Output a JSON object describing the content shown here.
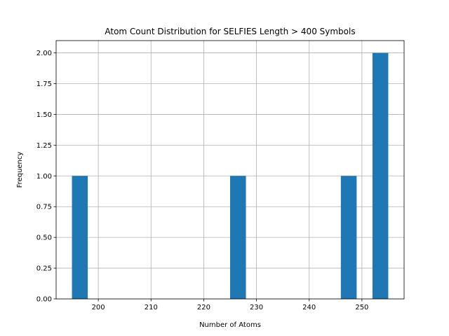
{
  "chart_data": {
    "type": "bar",
    "title": "Atom Count Distribution for SELFIES Length > 400 Symbols",
    "xlabel": "Number of Atoms",
    "ylabel": "Frequency",
    "xlim": [
      192.0,
      258.0
    ],
    "ylim": [
      0.0,
      2.1
    ],
    "grid": true,
    "bar_color": "#1f77b4",
    "bins": [
      {
        "start": 195.0,
        "end": 198.0,
        "count": 1
      },
      {
        "start": 225.0,
        "end": 228.0,
        "count": 1
      },
      {
        "start": 246.0,
        "end": 249.0,
        "count": 1
      },
      {
        "start": 252.0,
        "end": 255.0,
        "count": 2
      }
    ],
    "x_ticks": [
      {
        "value": 200,
        "label": "200"
      },
      {
        "value": 210,
        "label": "210"
      },
      {
        "value": 220,
        "label": "220"
      },
      {
        "value": 230,
        "label": "230"
      },
      {
        "value": 240,
        "label": "240"
      },
      {
        "value": 250,
        "label": "250"
      }
    ],
    "y_ticks": [
      {
        "value": 0.0,
        "label": "0.00"
      },
      {
        "value": 0.25,
        "label": "0.25"
      },
      {
        "value": 0.5,
        "label": "0.50"
      },
      {
        "value": 0.75,
        "label": "0.75"
      },
      {
        "value": 1.0,
        "label": "1.00"
      },
      {
        "value": 1.25,
        "label": "1.25"
      },
      {
        "value": 1.5,
        "label": "1.50"
      },
      {
        "value": 1.75,
        "label": "1.75"
      },
      {
        "value": 2.0,
        "label": "2.00"
      }
    ]
  }
}
